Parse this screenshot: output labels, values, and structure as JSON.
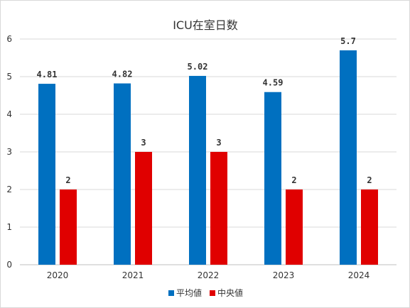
{
  "chart_data": {
    "type": "bar",
    "title": "ICU在室日数",
    "categories": [
      "2020",
      "2021",
      "2022",
      "2023",
      "2024"
    ],
    "series": [
      {
        "name": "平均値",
        "values": [
          4.81,
          4.82,
          5.02,
          4.59,
          5.7
        ],
        "labels": [
          "4.81",
          "4.82",
          "5.02",
          "4.59",
          "5.7"
        ],
        "color": "#0070c0"
      },
      {
        "name": "中央値",
        "values": [
          2,
          3,
          3,
          2,
          2
        ],
        "labels": [
          "2",
          "3",
          "3",
          "2",
          "2"
        ],
        "color": "#e00000"
      }
    ],
    "ylim": [
      0,
      6
    ],
    "yticks": [
      "0",
      "1",
      "2",
      "3",
      "4",
      "5",
      "6"
    ],
    "grid": true,
    "legend": "bottom"
  }
}
